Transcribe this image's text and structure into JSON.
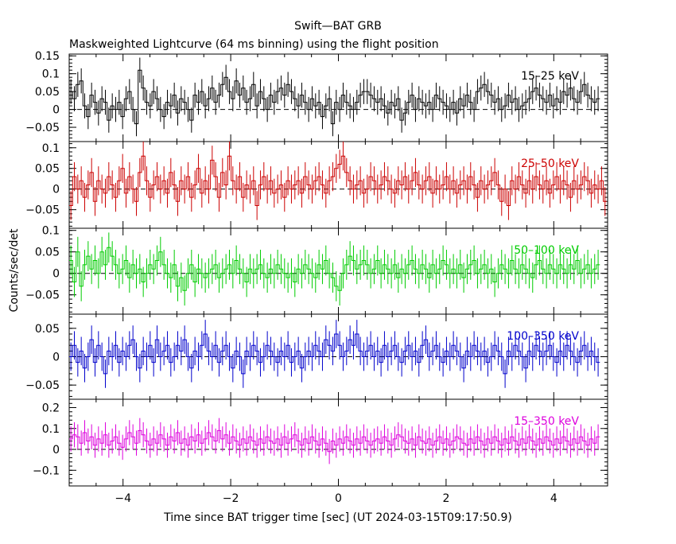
{
  "chart_data": {
    "type": "line",
    "title": "Swift—BAT GRB",
    "subtitle": "Maskweighted Lightcurve (64 ms binning) using the flight position",
    "xlabel": "Time since BAT trigger time [sec] (UT 2024‑03‑15T09:17:50.9)",
    "ylabel": "Counts/sec/det",
    "xlim": [
      -5,
      5
    ],
    "x_ticks": [
      -4,
      -2,
      0,
      2,
      4
    ],
    "x_tick_labels": [
      "−4",
      "−2",
      "0",
      "2",
      "4"
    ],
    "grid": false,
    "baseline": 0,
    "bin_width": 0.064,
    "x_start": -5,
    "panels": [
      {
        "name": "15–25 keV",
        "color": "#000000",
        "ylim": [
          -0.09,
          0.155
        ],
        "y_ticks": [
          -0.05,
          0,
          0.05,
          0.1,
          0.15
        ],
        "y_tick_labels": [
          "−0.05",
          "0",
          "0.05",
          "0.1",
          "0.15"
        ],
        "error": 0.035,
        "values": [
          0.05,
          0.03,
          0.07,
          0.08,
          0.01,
          -0.02,
          0.04,
          0.02,
          -0.01,
          0.03,
          0.02,
          -0.03,
          0.01,
          0.0,
          0.02,
          -0.02,
          0.03,
          0.05,
          0.0,
          -0.04,
          0.11,
          0.06,
          0.02,
          0.01,
          0.05,
          0.03,
          0.0,
          -0.02,
          0.02,
          0.01,
          0.04,
          -0.01,
          0.03,
          0.02,
          0.0,
          -0.03,
          0.04,
          0.02,
          0.05,
          0.01,
          0.03,
          0.06,
          0.02,
          0.04,
          0.07,
          0.09,
          0.05,
          0.03,
          0.08,
          0.04,
          0.06,
          0.02,
          0.03,
          0.07,
          0.01,
          0.05,
          0.03,
          0.0,
          0.04,
          0.02,
          0.05,
          0.06,
          0.04,
          0.07,
          0.05,
          0.03,
          0.01,
          0.04,
          0.02,
          0.0,
          0.03,
          0.01,
          0.02,
          -0.02,
          0.01,
          0.03,
          -0.04,
          0.02,
          0.0,
          0.04,
          0.02,
          0.01,
          0.0,
          0.02,
          0.04,
          0.05,
          0.05,
          0.04,
          0.03,
          0.02,
          0.03,
          0.01,
          -0.01,
          0.02,
          0.01,
          0.03,
          -0.03,
          -0.01,
          0.02,
          0.04,
          0.0,
          0.03,
          0.02,
          0.01,
          0.02,
          0.0,
          0.04,
          0.03,
          0.02,
          0.01,
          0.0,
          0.02,
          -0.01,
          0.03,
          0.01,
          0.04,
          0.02,
          0.0,
          0.05,
          0.06,
          0.07,
          0.05,
          0.04,
          0.02,
          0.03,
          0.0,
          0.01,
          0.04,
          0.02,
          0.03,
          0.0,
          0.01,
          0.02,
          0.03,
          0.05,
          0.06,
          0.04,
          0.03,
          0.02,
          0.04,
          0.01,
          0.03,
          0.02,
          0.05,
          0.04,
          0.06,
          0.03,
          0.02,
          0.05,
          0.07,
          0.04,
          0.03,
          0.02,
          0.03
        ]
      },
      {
        "name": "25–50 keV",
        "color": "#cc0000",
        "ylim": [
          -0.095,
          0.115
        ],
        "y_ticks": [
          -0.05,
          0,
          0.05,
          0.1
        ],
        "y_tick_labels": [
          "−0.05",
          "0",
          "0.05",
          "0.1"
        ],
        "error": 0.035,
        "values": [
          -0.04,
          0.03,
          0.0,
          0.02,
          -0.02,
          0.01,
          0.04,
          -0.03,
          0.02,
          0.0,
          -0.01,
          0.03,
          0.01,
          -0.02,
          0.02,
          0.05,
          -0.01,
          0.03,
          0.0,
          -0.03,
          0.04,
          0.08,
          0.02,
          -0.02,
          0.01,
          0.03,
          0.0,
          0.02,
          -0.01,
          0.04,
          0.01,
          -0.03,
          0.02,
          0.0,
          0.03,
          -0.02,
          0.01,
          0.05,
          -0.01,
          0.02,
          0.0,
          0.07,
          0.03,
          -0.02,
          0.04,
          0.01,
          0.08,
          0.02,
          0.0,
          0.03,
          -0.02,
          0.01,
          0.0,
          0.02,
          -0.04,
          0.01,
          0.03,
          0.0,
          0.02,
          -0.01,
          0.0,
          0.01,
          -0.02,
          0.02,
          0.0,
          0.01,
          0.02,
          -0.01,
          0.03,
          0.01,
          0.0,
          0.02,
          0.03,
          0.01,
          -0.01,
          0.02,
          0.03,
          0.05,
          0.06,
          0.08,
          0.04,
          0.02,
          0.0,
          0.01,
          0.02,
          -0.01,
          0.0,
          0.03,
          0.02,
          0.0,
          0.01,
          0.03,
          0.02,
          0.0,
          -0.01,
          0.02,
          0.01,
          0.03,
          0.0,
          0.02,
          0.04,
          0.01,
          0.0,
          0.02,
          0.03,
          -0.01,
          0.02,
          0.0,
          0.01,
          0.03,
          0.0,
          0.02,
          -0.01,
          0.01,
          0.02,
          0.0,
          0.03,
          0.01,
          -0.02,
          0.02,
          0.0,
          0.01,
          0.02,
          0.04,
          0.01,
          -0.03,
          0.0,
          -0.04,
          0.02,
          0.0,
          0.03,
          0.01,
          -0.01,
          0.02,
          0.0,
          0.03,
          0.01,
          0.0,
          0.02,
          -0.01,
          0.01,
          0.03,
          0.0,
          0.02,
          0.01,
          -0.02,
          0.02,
          0.0,
          0.01,
          0.03,
          0.02,
          -0.01,
          0.01,
          0.0,
          0.02,
          -0.03
        ]
      },
      {
        "name": "50–100 keV",
        "color": "#00cc00",
        "ylim": [
          -0.095,
          0.105
        ],
        "y_ticks": [
          -0.05,
          0,
          0.05,
          0.1
        ],
        "y_tick_labels": [
          "−0.05",
          "0",
          "0.05",
          "0.1"
        ],
        "error": 0.035,
        "values": [
          0.03,
          -0.02,
          0.05,
          -0.03,
          0.02,
          0.04,
          0.01,
          0.03,
          0.0,
          0.05,
          0.02,
          0.06,
          0.04,
          0.02,
          0.0,
          0.01,
          0.03,
          -0.01,
          0.02,
          0.0,
          0.01,
          -0.02,
          0.0,
          0.02,
          0.01,
          0.03,
          0.05,
          0.02,
          0.0,
          -0.01,
          0.02,
          -0.03,
          -0.01,
          -0.04,
          0.0,
          0.02,
          -0.02,
          0.01,
          0.0,
          -0.01,
          0.0,
          0.01,
          0.02,
          -0.01,
          0.0,
          0.01,
          0.02,
          0.0,
          0.03,
          0.01,
          0.0,
          -0.02,
          0.01,
          0.0,
          0.01,
          0.02,
          0.0,
          -0.01,
          0.01,
          0.0,
          0.02,
          0.01,
          0.0,
          -0.01,
          0.0,
          -0.02,
          0.01,
          0.0,
          0.02,
          0.01,
          0.0,
          -0.01,
          0.02,
          0.01,
          0.03,
          0.0,
          -0.01,
          -0.03,
          -0.04,
          0.0,
          0.02,
          0.04,
          0.03,
          0.01,
          0.02,
          0.03,
          0.02,
          0.0,
          0.01,
          0.03,
          0.0,
          0.02,
          0.01,
          0.0,
          0.02,
          -0.01,
          0.01,
          0.0,
          0.02,
          0.03,
          0.01,
          0.0,
          0.02,
          0.01,
          -0.01,
          0.02,
          0.0,
          0.01,
          0.03,
          0.02,
          0.0,
          0.01,
          0.0,
          0.02,
          -0.01,
          0.01,
          0.02,
          0.03,
          0.0,
          0.01,
          0.02,
          0.0,
          0.01,
          -0.02,
          0.0,
          0.02,
          0.01,
          0.0,
          0.03,
          0.01,
          0.0,
          0.02,
          0.01,
          0.0,
          -0.01,
          0.02,
          0.03,
          0.01,
          0.0,
          0.02,
          0.01,
          0.0,
          0.02,
          0.01,
          0.0,
          0.02,
          0.01,
          0.03,
          0.0,
          0.01,
          0.02,
          0.0,
          0.01,
          0.02
        ]
      },
      {
        "name": "100–350 keV",
        "color": "#0000cc",
        "ylim": [
          -0.075,
          0.075
        ],
        "y_ticks": [
          -0.05,
          0,
          0.05
        ],
        "y_tick_labels": [
          "−0.05",
          "0",
          "0.05"
        ],
        "error": 0.025,
        "values": [
          0.0,
          0.02,
          -0.01,
          0.01,
          -0.02,
          0.0,
          0.03,
          -0.01,
          0.02,
          0.0,
          -0.03,
          0.01,
          0.0,
          0.02,
          -0.01,
          0.01,
          0.0,
          0.02,
          0.03,
          0.0,
          -0.02,
          0.01,
          0.0,
          0.02,
          -0.01,
          0.03,
          0.0,
          0.01,
          0.02,
          -0.01,
          0.0,
          0.02,
          0.01,
          0.03,
          0.0,
          -0.02,
          0.01,
          0.0,
          0.02,
          0.04,
          0.01,
          0.0,
          0.02,
          -0.01,
          0.01,
          0.02,
          0.0,
          -0.02,
          0.01,
          0.0,
          -0.03,
          0.01,
          0.0,
          0.02,
          0.01,
          -0.01,
          0.0,
          0.02,
          0.01,
          0.0,
          -0.01,
          0.01,
          0.0,
          0.02,
          -0.01,
          0.0,
          0.01,
          -0.02,
          0.0,
          0.01,
          0.0,
          0.02,
          0.01,
          0.0,
          0.03,
          0.02,
          0.01,
          0.04,
          0.02,
          0.0,
          0.01,
          0.03,
          0.02,
          0.04,
          0.01,
          0.0,
          0.01,
          0.02,
          0.0,
          0.01,
          -0.01,
          0.02,
          0.0,
          0.01,
          0.02,
          0.0,
          -0.01,
          0.01,
          0.02,
          0.0,
          0.01,
          -0.01,
          0.02,
          0.03,
          0.0,
          0.01,
          0.02,
          0.0,
          -0.01,
          0.01,
          0.0,
          0.02,
          0.01,
          0.0,
          -0.02,
          0.01,
          0.0,
          0.02,
          0.01,
          0.0,
          0.01,
          -0.01,
          0.0,
          0.02,
          0.01,
          0.0,
          -0.03,
          0.01,
          0.0,
          0.02,
          0.01,
          0.0,
          -0.02,
          0.01,
          0.0,
          0.02,
          0.01,
          0.0,
          0.01,
          0.02,
          0.0,
          -0.01,
          0.01,
          0.0,
          0.02,
          0.01,
          0.0,
          -0.01,
          0.01,
          0.02,
          0.0,
          0.01,
          0.0,
          -0.01
        ]
      },
      {
        "name": "15–350 keV",
        "color": "#dd00dd",
        "ylim": [
          -0.175,
          0.24
        ],
        "y_ticks": [
          -0.1,
          0,
          0.1,
          0.2
        ],
        "y_tick_labels": [
          "−0.1",
          "0",
          "0.1",
          "0.2"
        ],
        "error": 0.06,
        "values": [
          0.05,
          0.07,
          0.06,
          0.03,
          0.08,
          0.04,
          0.06,
          0.02,
          0.05,
          0.03,
          0.07,
          0.02,
          0.04,
          0.06,
          0.03,
          0.01,
          0.05,
          0.08,
          0.06,
          0.03,
          0.09,
          0.07,
          0.04,
          0.02,
          0.05,
          0.03,
          0.07,
          0.05,
          0.02,
          0.06,
          0.04,
          0.08,
          0.03,
          0.05,
          0.02,
          0.06,
          0.04,
          0.07,
          0.03,
          0.05,
          0.08,
          0.06,
          0.04,
          0.09,
          0.05,
          0.07,
          0.03,
          0.06,
          0.04,
          0.02,
          0.05,
          0.03,
          0.06,
          0.04,
          0.02,
          0.05,
          0.03,
          0.06,
          0.04,
          0.03,
          0.05,
          0.02,
          0.06,
          0.03,
          0.05,
          0.07,
          0.04,
          0.02,
          0.05,
          0.03,
          0.06,
          0.04,
          0.02,
          0.05,
          0.03,
          -0.01,
          0.04,
          0.02,
          0.05,
          0.03,
          0.06,
          0.04,
          0.02,
          0.05,
          0.03,
          0.06,
          0.04,
          0.02,
          0.04,
          0.05,
          0.03,
          0.06,
          0.04,
          0.02,
          0.05,
          0.07,
          0.06,
          0.04,
          0.03,
          0.05,
          0.02,
          0.06,
          0.04,
          0.03,
          0.05,
          0.02,
          0.04,
          0.06,
          0.03,
          0.05,
          0.02,
          0.04,
          0.06,
          0.05,
          0.03,
          0.02,
          0.05,
          0.03,
          0.06,
          0.04,
          0.02,
          0.05,
          0.03,
          0.06,
          0.04,
          0.02,
          0.05,
          0.03,
          0.06,
          0.04,
          0.02,
          0.05,
          0.03,
          0.06,
          0.04,
          0.02,
          0.05,
          0.03,
          0.06,
          0.04,
          0.02,
          0.05,
          0.03,
          0.06,
          0.04,
          0.02,
          0.05,
          0.03,
          0.06,
          0.04,
          0.02,
          0.05,
          0.03,
          0.06
        ]
      }
    ]
  }
}
